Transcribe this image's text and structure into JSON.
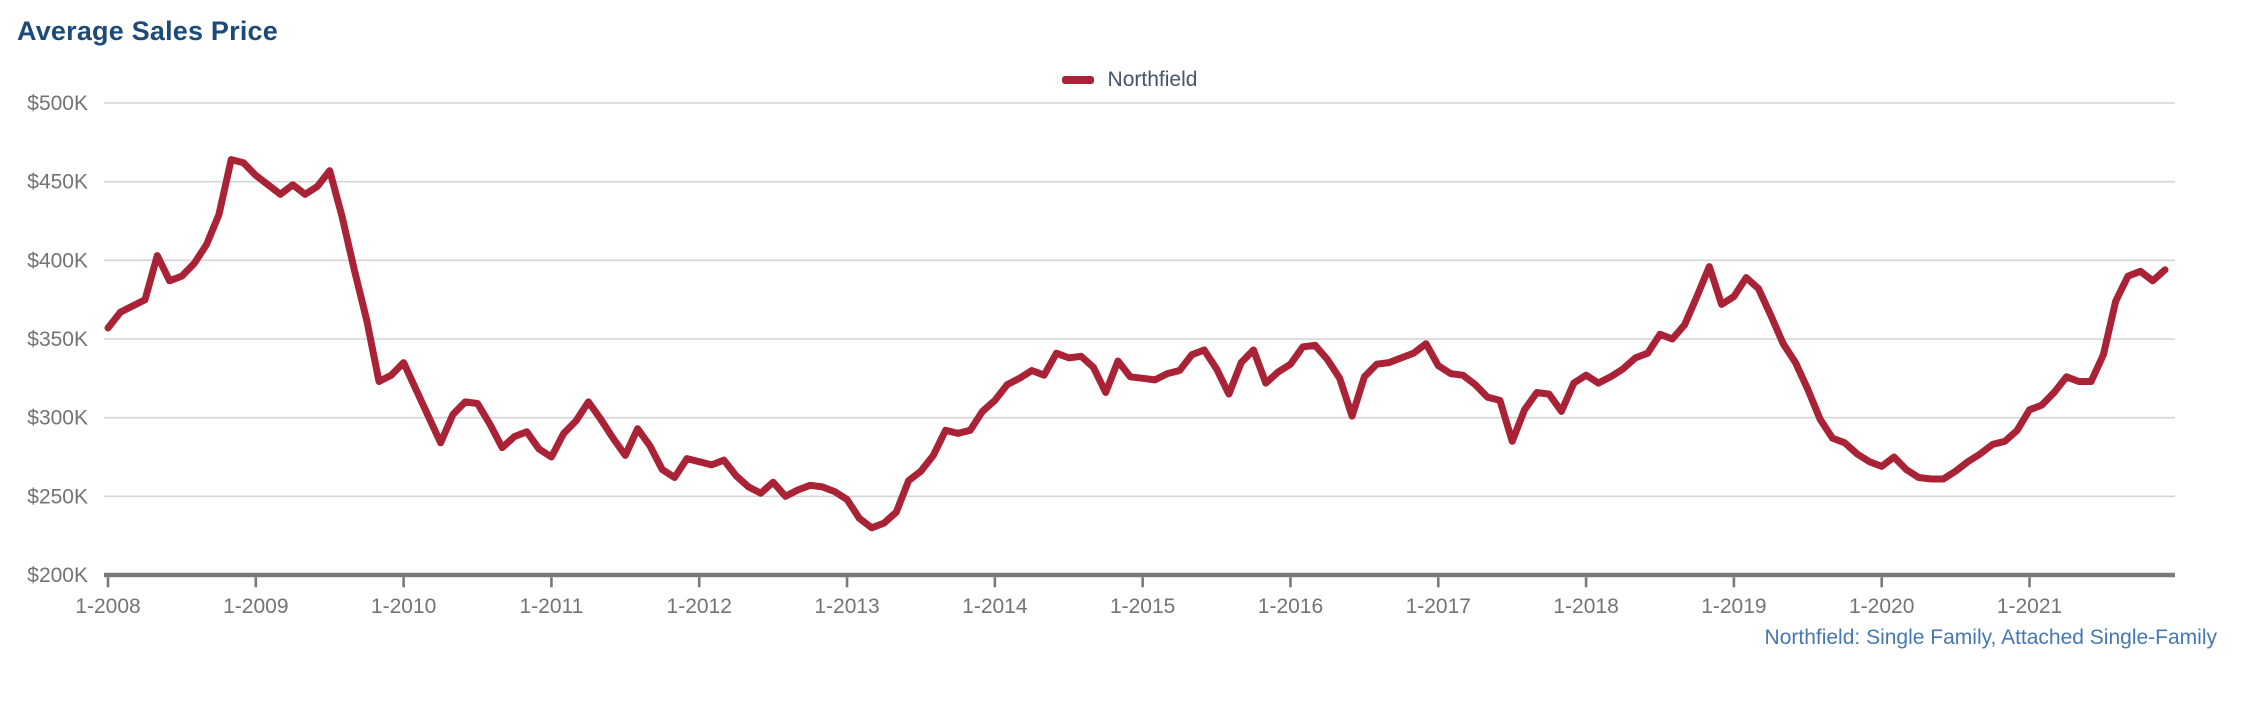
{
  "header": {
    "title": "Average Sales Price",
    "title_color": "#1d4b79"
  },
  "legend": {
    "position": "top-center",
    "items": [
      {
        "label": "Northfield",
        "color": "#a92236"
      }
    ],
    "text_color": "#44546a"
  },
  "footnote": {
    "text": "Northfield: Single Family, Attached Single-Family",
    "color": "#4677b2"
  },
  "colors": {
    "line": "#a92236",
    "gridline": "#d4d4d4",
    "axis": "#7a7a7a",
    "tick_label": "#737373",
    "background": "#ffffff"
  },
  "chart_data": {
    "type": "line",
    "title": "Average Sales Price",
    "xlabel": "",
    "ylabel": "",
    "grid": "horizontal",
    "legend_position": "top-center",
    "ylim": [
      200,
      500
    ],
    "y_unit": "USD thousands",
    "y_ticks": [
      {
        "value": 500,
        "label": "$500K"
      },
      {
        "value": 450,
        "label": "$450K"
      },
      {
        "value": 400,
        "label": "$400K"
      },
      {
        "value": 350,
        "label": "$350K"
      },
      {
        "value": 300,
        "label": "$300K"
      },
      {
        "value": 250,
        "label": "$250K"
      },
      {
        "value": 200,
        "label": "$200K"
      }
    ],
    "x_tick_labels": [
      "1-2008",
      "1-2009",
      "1-2010",
      "1-2011",
      "1-2012",
      "1-2013",
      "1-2014",
      "1-2015",
      "1-2016",
      "1-2017",
      "1-2018",
      "1-2019",
      "1-2020",
      "1-2021"
    ],
    "series": [
      {
        "name": "Northfield",
        "color": "#a92236",
        "frequency": "monthly",
        "start": "2008-01",
        "end": "2021-12",
        "values_k_usd": [
          357,
          367,
          371,
          375,
          403,
          387,
          390,
          398,
          410,
          429,
          464,
          462,
          454,
          448,
          442,
          448,
          442,
          447,
          457,
          428,
          394,
          362,
          323,
          327,
          335,
          318,
          301,
          284,
          302,
          310,
          309,
          296,
          281,
          288,
          291,
          280,
          275,
          290,
          298,
          310,
          299,
          287,
          276,
          293,
          282,
          267,
          262,
          274,
          272,
          270,
          273,
          263,
          256,
          252,
          259,
          250,
          254,
          257,
          256,
          253,
          248,
          236,
          230,
          233,
          240,
          260,
          266,
          276,
          292,
          290,
          292,
          304,
          311,
          321,
          325,
          330,
          327,
          341,
          338,
          339,
          332,
          316,
          336,
          326,
          325,
          324,
          328,
          330,
          340,
          343,
          331,
          315,
          335,
          343,
          322,
          329,
          334,
          345,
          346,
          337,
          325,
          301,
          326,
          334,
          335,
          338,
          341,
          347,
          333,
          328,
          327,
          321,
          313,
          311,
          285,
          305,
          316,
          315,
          304,
          322,
          327,
          322,
          326,
          331,
          338,
          341,
          353,
          350,
          359,
          377,
          396,
          372,
          377,
          389,
          382,
          365,
          347,
          335,
          318,
          299,
          287,
          284,
          277,
          272,
          269,
          275,
          267,
          262,
          261,
          261,
          266,
          272,
          277,
          283,
          285,
          292,
          305,
          308,
          316,
          326,
          323,
          323,
          340,
          374,
          390,
          393,
          387,
          394
        ]
      }
    ]
  }
}
